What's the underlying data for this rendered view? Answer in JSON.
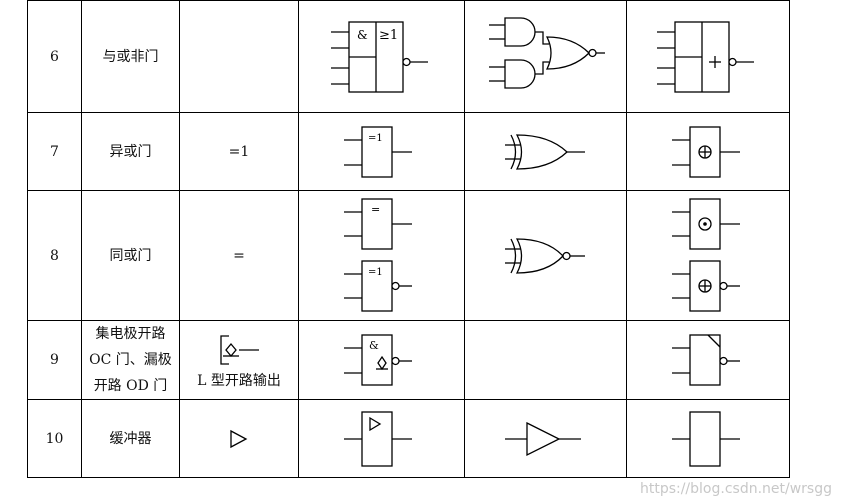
{
  "rows": [
    {
      "num": "6",
      "name": "与或非门",
      "mark": "",
      "gb_and": "&",
      "gb_or": "≥1"
    },
    {
      "num": "7",
      "name": "异或门",
      "mark": "=1",
      "gb": "=1"
    },
    {
      "num": "8",
      "name": "同或门",
      "mark": "=",
      "gb_top": "=",
      "gb_bottom": "=1"
    },
    {
      "num": "9",
      "name_lines": [
        "集电极开路",
        "OC 门、漏极",
        "开路 OD 门"
      ],
      "mark_caption": "L 型开路输出",
      "gb": "&"
    },
    {
      "num": "10",
      "name": "缓冲器"
    }
  ],
  "watermark": "https://blog.csdn.net/wrsgg"
}
